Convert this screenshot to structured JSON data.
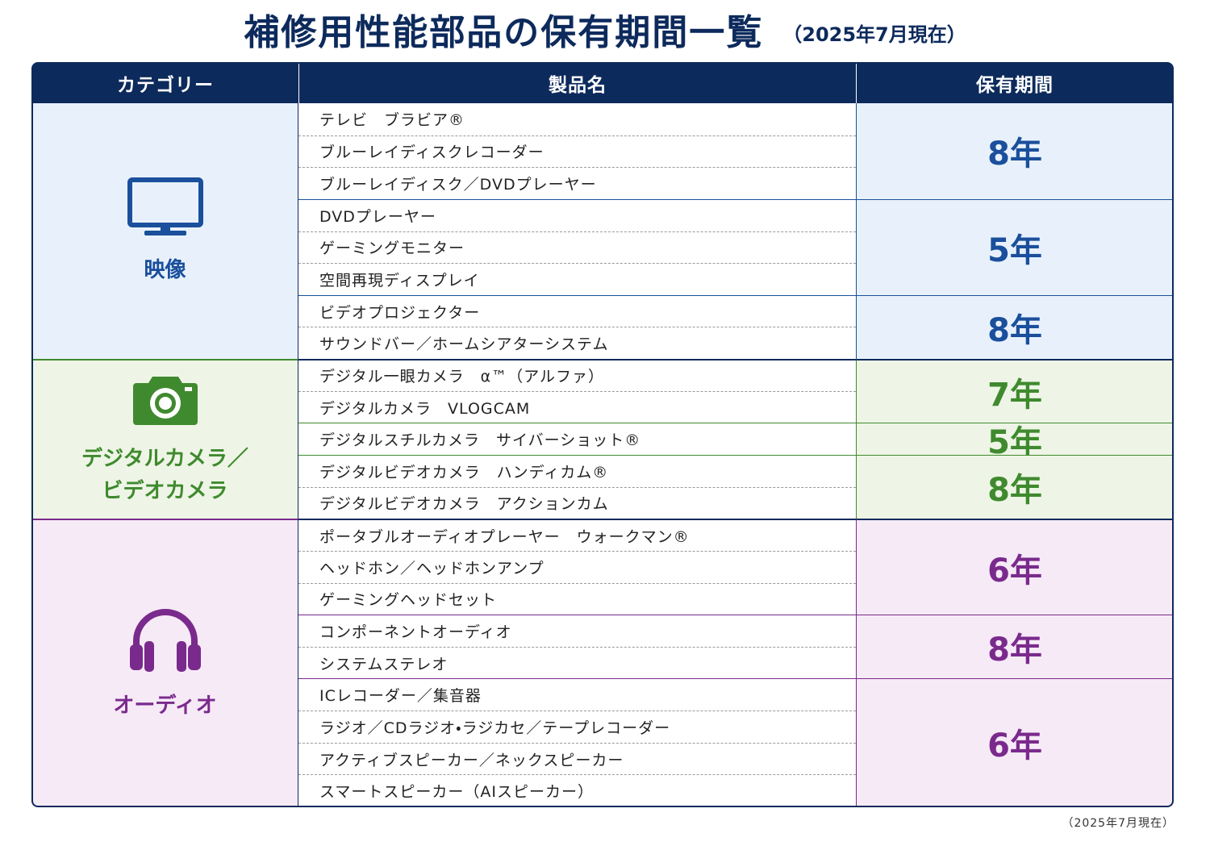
{
  "title": "補修用性能部品の保有期間一覧",
  "subtitle": "（2025年7月現在）",
  "header": [
    "カテゴリー",
    "製品名",
    "保有期間"
  ],
  "groups": [
    {
      "category": [
        "映像"
      ],
      "blocks": [
        {
          "period": "8年",
          "products": [
            "テレビ　ブラビア®",
            "ブルーレイディスクレコーダー",
            "ブルーレイディスク／DVDプレーヤー"
          ]
        },
        {
          "period": "5年",
          "products": [
            "DVDプレーヤー",
            "ゲーミングモニター",
            "空間再現ディスプレイ"
          ]
        },
        {
          "period": "8年",
          "products": [
            "ビデオプロジェクター",
            "サウンドバー／ホームシアターシステム"
          ]
        }
      ]
    },
    {
      "category": [
        "デジタルカメラ／",
        "ビデオカメラ"
      ],
      "blocks": [
        {
          "period": "7年",
          "products": [
            "デジタル一眼カメラ　α™（アルファ）",
            "デジタルカメラ　VLOGCAM"
          ]
        },
        {
          "period": "5年",
          "products": [
            "デジタルスチルカメラ　サイバーショット®"
          ]
        },
        {
          "period": "8年",
          "products": [
            "デジタルビデオカメラ　ハンディカム®",
            "デジタルビデオカメラ　アクションカム"
          ]
        }
      ]
    },
    {
      "category": [
        "オーディオ"
      ],
      "blocks": [
        {
          "period": "6年",
          "products": [
            "ポータブルオーディオプレーヤー　ウォークマン®",
            "ヘッドホン／ヘッドホンアンプ",
            "ゲーミングヘッドセット"
          ]
        },
        {
          "period": "8年",
          "products": [
            "コンポーネントオーディオ",
            "システムステレオ"
          ]
        },
        {
          "period": "6年",
          "products": [
            "ICレコーダー／集音器",
            "ラジオ／CDラジオ・ラジカセ／テープレコーダー",
            "アクティブスピーカー／ネックスピーカー",
            "スマートスピーカー（AIスピーカー）"
          ]
        }
      ]
    }
  ],
  "footnote": "（2025年7月現在）"
}
